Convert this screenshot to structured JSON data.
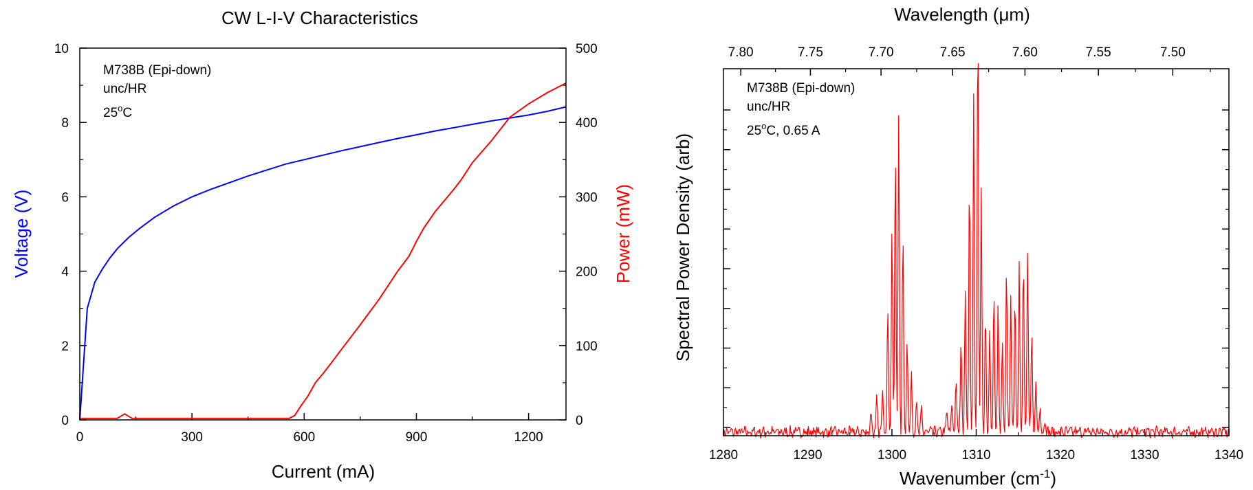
{
  "chart_data": [
    {
      "type": "line",
      "title": "CW L-I-V Characteristics",
      "xlabel": "Current (mA)",
      "ylabel_left": "Voltage (V)",
      "ylabel_right": "Power (mW)",
      "xlim": [
        0,
        1300
      ],
      "ylim_left": [
        0,
        10
      ],
      "ylim_right": [
        0,
        500
      ],
      "xticks": [
        0,
        300,
        600,
        900,
        1200
      ],
      "yticks_left": [
        0,
        2,
        4,
        6,
        8,
        10
      ],
      "yticks_right": [
        0,
        100,
        200,
        300,
        400,
        500
      ],
      "annotations": [
        "M738B (Epi-down)",
        "unc/HR",
        "25",
        "o",
        "C"
      ],
      "colors": {
        "voltage": "#0000ff",
        "power": "#ff0000"
      },
      "series": [
        {
          "name": "Voltage (V)",
          "axis": "left",
          "x": [
            0,
            20,
            40,
            60,
            80,
            100,
            130,
            160,
            200,
            250,
            300,
            350,
            400,
            450,
            500,
            550,
            600,
            650,
            700,
            750,
            800,
            850,
            900,
            950,
            1000,
            1050,
            1100,
            1150,
            1200,
            1250,
            1300
          ],
          "y": [
            0,
            3.0,
            3.7,
            4.05,
            4.35,
            4.6,
            4.9,
            5.15,
            5.45,
            5.75,
            6.0,
            6.2,
            6.38,
            6.56,
            6.72,
            6.88,
            7.0,
            7.12,
            7.24,
            7.35,
            7.46,
            7.57,
            7.67,
            7.77,
            7.86,
            7.95,
            8.04,
            8.12,
            8.2,
            8.3,
            8.42
          ]
        },
        {
          "name": "Power (mW)",
          "axis": "right",
          "x": [
            0,
            100,
            120,
            140,
            300,
            500,
            560,
            575,
            590,
            610,
            630,
            650,
            670,
            700,
            750,
            800,
            850,
            880,
            900,
            920,
            950,
            1000,
            1020,
            1050,
            1100,
            1150,
            1200,
            1250,
            1300
          ],
          "y": [
            2,
            2,
            8,
            2,
            2,
            2,
            2,
            6,
            18,
            32,
            50,
            62,
            75,
            95,
            128,
            162,
            200,
            220,
            240,
            258,
            280,
            310,
            323,
            346,
            375,
            407,
            425,
            440,
            453
          ]
        }
      ]
    },
    {
      "type": "line",
      "xlabel": "Wavenumber (cm",
      "xlabel_sup": "-1",
      "xlabel_end": ")",
      "ylabel": "Spectral Power Density (arb)",
      "top_xlabel": "Wavelength (",
      "top_xlabel_mu": "μm",
      "top_xlabel_end": ")",
      "xlim": [
        1280,
        1340
      ],
      "ylim": [
        0,
        100
      ],
      "xticks": [
        1280,
        1290,
        1300,
        1310,
        1320,
        1330,
        1340
      ],
      "top_xticks": [
        7.8,
        7.75,
        7.7,
        7.65,
        7.6,
        7.55,
        7.5
      ],
      "top_xtick_labels": [
        "7.80",
        "7.75",
        "7.70",
        "7.65",
        "7.60",
        "7.55",
        "7.50"
      ],
      "annotations": [
        "M738B (Epi-down)",
        "unc/HR",
        "25",
        "o",
        "C, 0.65 A"
      ],
      "colors": {
        "spectrum": "#ff0000"
      },
      "series": [
        {
          "baseline": 1.0,
          "noise": 1.2,
          "peaks": [
            [
              1297.5,
              6
            ],
            [
              1298.2,
              9
            ],
            [
              1298.9,
              13
            ],
            [
              1299.5,
              34
            ],
            [
              1300.0,
              57
            ],
            [
              1300.4,
              77
            ],
            [
              1300.8,
              87
            ],
            [
              1301.3,
              55
            ],
            [
              1301.8,
              25
            ],
            [
              1302.3,
              17
            ],
            [
              1302.9,
              8
            ],
            [
              1303.5,
              6
            ],
            [
              1306.5,
              6
            ],
            [
              1307.1,
              8
            ],
            [
              1307.6,
              15
            ],
            [
              1308.2,
              26
            ],
            [
              1308.7,
              40
            ],
            [
              1309.2,
              70
            ],
            [
              1309.7,
              92
            ],
            [
              1310.2,
              114
            ],
            [
              1310.6,
              66
            ],
            [
              1311.1,
              33
            ],
            [
              1311.6,
              27
            ],
            [
              1312.1,
              38
            ],
            [
              1312.6,
              34
            ],
            [
              1313.1,
              24
            ],
            [
              1313.6,
              46
            ],
            [
              1314.1,
              38
            ],
            [
              1314.6,
              39
            ],
            [
              1315.1,
              47
            ],
            [
              1315.6,
              48
            ],
            [
              1316.1,
              50
            ],
            [
              1316.6,
              28
            ],
            [
              1317.1,
              14
            ],
            [
              1317.6,
              8
            ],
            [
              1318.2,
              4
            ]
          ]
        }
      ]
    }
  ]
}
